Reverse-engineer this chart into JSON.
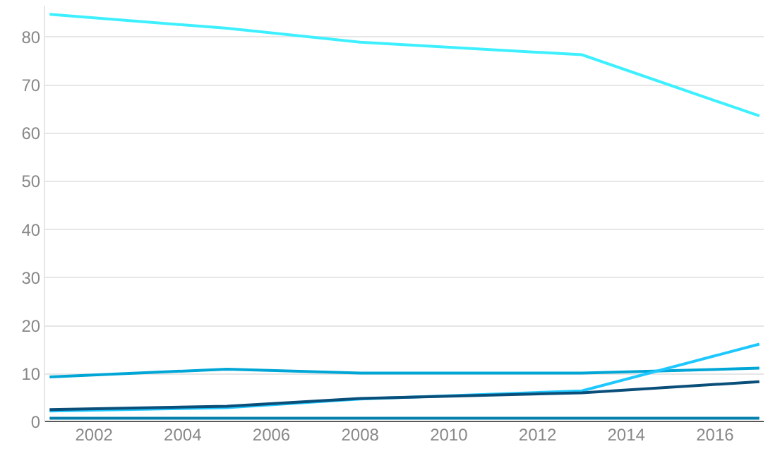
{
  "chart_data": {
    "type": "line",
    "x": [
      2001,
      2005,
      2008,
      2013,
      2017
    ],
    "series": [
      {
        "color": "#3ef0ff",
        "values": [
          84.7,
          81.8,
          78.9,
          76.3,
          63.6
        ]
      },
      {
        "color": "#00a6d6",
        "values": [
          9.4,
          11,
          10.2,
          10.2,
          11.2
        ]
      },
      {
        "color": "#1ec8ff",
        "values": [
          2.3,
          3,
          4.8,
          6.5,
          16.2
        ]
      },
      {
        "color": "#0a4f7a",
        "values": [
          2.6,
          3.3,
          4.9,
          6.1,
          8.4
        ]
      },
      {
        "color": "#0380ad",
        "values": [
          0.8,
          0.8,
          0.8,
          0.8,
          0.8
        ]
      }
    ],
    "xlim": [
      2000.9,
      2017.1
    ],
    "ylim": [
      0,
      86.5
    ],
    "xticks": [
      2002,
      2004,
      2006,
      2008,
      2010,
      2012,
      2014,
      2016
    ],
    "yticks": [
      0,
      10,
      20,
      30,
      40,
      50,
      60,
      70,
      80
    ],
    "grid": "y",
    "marker": "none",
    "line_style": "solid"
  }
}
